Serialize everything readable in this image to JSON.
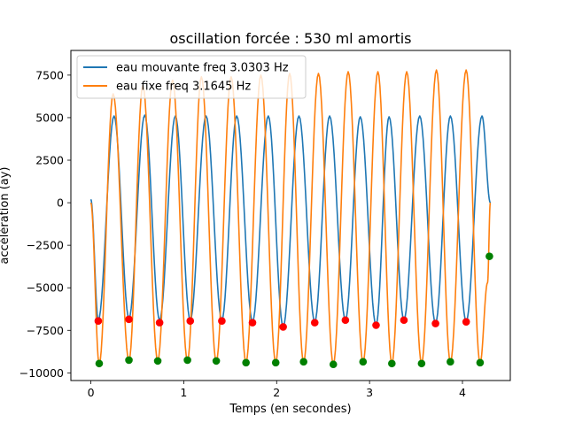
{
  "chart_data": {
    "type": "line",
    "title": "oscillation forcée : 530 ml amortis",
    "xlabel": "Temps (en secondes)",
    "ylabel": "accélération  (ay)",
    "xlim": [
      -0.215,
      4.515
    ],
    "ylim": [
      -10450,
      8950
    ],
    "x_ticks": [
      0,
      1,
      2,
      3,
      4
    ],
    "y_ticks": [
      -10000,
      -7500,
      -5000,
      -2500,
      0,
      2500,
      5000,
      7500
    ],
    "grid": false,
    "legend_position": "top-left",
    "colors": {
      "series_1": "#1f77b4",
      "series_2": "#ff7f0e",
      "peak_markers_red": "#ff0000",
      "peak_markers_green": "#008000"
    },
    "series": [
      {
        "name": "eau mouvante freq 3.0303 Hz",
        "color": "#1f77b4",
        "t_range": [
          0.0,
          4.3
        ],
        "frequency_hz": 3.0303,
        "amplitude": 5900,
        "offset": -900,
        "start_value": 200,
        "end_value": 0,
        "troughs": [
          {
            "x": 0.08,
            "y": -6900
          },
          {
            "x": 0.41,
            "y": -6800
          },
          {
            "x": 0.74,
            "y": -6900
          },
          {
            "x": 1.07,
            "y": -6900
          },
          {
            "x": 1.41,
            "y": -6900
          },
          {
            "x": 1.74,
            "y": -7000
          },
          {
            "x": 2.07,
            "y": -7300
          },
          {
            "x": 2.41,
            "y": -7000
          },
          {
            "x": 2.74,
            "y": -6900
          },
          {
            "x": 3.07,
            "y": -7200
          },
          {
            "x": 3.37,
            "y": -6900
          },
          {
            "x": 3.71,
            "y": -7100
          },
          {
            "x": 4.04,
            "y": -7000
          }
        ],
        "peaks": [
          {
            "x": 0.25,
            "y": 5100
          },
          {
            "x": 0.58,
            "y": 5150
          },
          {
            "x": 0.91,
            "y": 5100
          },
          {
            "x": 1.24,
            "y": 5100
          },
          {
            "x": 1.57,
            "y": 5100
          },
          {
            "x": 1.91,
            "y": 5100
          },
          {
            "x": 2.24,
            "y": 5100
          },
          {
            "x": 2.57,
            "y": 5100
          },
          {
            "x": 2.9,
            "y": 5050
          },
          {
            "x": 3.21,
            "y": 5050
          },
          {
            "x": 3.54,
            "y": 5100
          },
          {
            "x": 3.87,
            "y": 5100
          },
          {
            "x": 4.21,
            "y": 5100
          }
        ]
      },
      {
        "name": "eau fixe freq 3.1645 Hz",
        "color": "#ff7f0e",
        "t_range": [
          0.0,
          4.3
        ],
        "frequency_hz": 3.1645,
        "troughs": [
          {
            "x": 0.09,
            "y": -9500
          },
          {
            "x": 0.41,
            "y": -9300
          },
          {
            "x": 0.72,
            "y": -9300
          },
          {
            "x": 1.04,
            "y": -9300
          },
          {
            "x": 1.35,
            "y": -9350
          },
          {
            "x": 1.67,
            "y": -9400
          },
          {
            "x": 1.99,
            "y": -9400
          },
          {
            "x": 2.29,
            "y": -9400
          },
          {
            "x": 2.61,
            "y": -9500
          },
          {
            "x": 2.93,
            "y": -9400
          },
          {
            "x": 3.24,
            "y": -9450
          },
          {
            "x": 3.56,
            "y": -9450
          },
          {
            "x": 3.87,
            "y": -9400
          },
          {
            "x": 4.19,
            "y": -9450
          }
        ],
        "peaks": [
          {
            "x": 0.24,
            "y": 6400
          },
          {
            "x": 0.56,
            "y": 6900
          },
          {
            "x": 0.88,
            "y": 7200
          },
          {
            "x": 1.19,
            "y": 7400
          },
          {
            "x": 1.51,
            "y": 7400
          },
          {
            "x": 1.83,
            "y": 7500
          },
          {
            "x": 2.14,
            "y": 7600
          },
          {
            "x": 2.45,
            "y": 7600
          },
          {
            "x": 2.77,
            "y": 7700
          },
          {
            "x": 3.09,
            "y": 7700
          },
          {
            "x": 3.4,
            "y": 7700
          },
          {
            "x": 3.72,
            "y": 7800
          },
          {
            "x": 4.04,
            "y": 7800
          }
        ],
        "end_trough": {
          "x": 4.27,
          "y": -4700
        },
        "end_value": 0
      }
    ],
    "markers": [
      {
        "name": "",
        "color": "#ff0000",
        "points": [
          {
            "x": 0.08,
            "y": -6950
          },
          {
            "x": 0.41,
            "y": -6850
          },
          {
            "x": 0.74,
            "y": -7050
          },
          {
            "x": 1.07,
            "y": -6950
          },
          {
            "x": 1.41,
            "y": -6950
          },
          {
            "x": 1.74,
            "y": -7050
          },
          {
            "x": 2.07,
            "y": -7300
          },
          {
            "x": 2.41,
            "y": -7050
          },
          {
            "x": 2.74,
            "y": -6900
          },
          {
            "x": 3.07,
            "y": -7200
          },
          {
            "x": 3.37,
            "y": -6900
          },
          {
            "x": 3.71,
            "y": -7100
          },
          {
            "x": 4.04,
            "y": -7000
          }
        ]
      },
      {
        "name": "",
        "color": "#008000",
        "points": [
          {
            "x": 0.09,
            "y": -9450
          },
          {
            "x": 0.41,
            "y": -9250
          },
          {
            "x": 0.72,
            "y": -9300
          },
          {
            "x": 1.04,
            "y": -9250
          },
          {
            "x": 1.35,
            "y": -9300
          },
          {
            "x": 1.67,
            "y": -9400
          },
          {
            "x": 1.99,
            "y": -9400
          },
          {
            "x": 2.29,
            "y": -9350
          },
          {
            "x": 2.61,
            "y": -9500
          },
          {
            "x": 2.93,
            "y": -9350
          },
          {
            "x": 3.24,
            "y": -9450
          },
          {
            "x": 3.56,
            "y": -9450
          },
          {
            "x": 3.87,
            "y": -9350
          },
          {
            "x": 4.19,
            "y": -9400
          },
          {
            "x": 4.29,
            "y": -3150
          }
        ]
      }
    ]
  }
}
